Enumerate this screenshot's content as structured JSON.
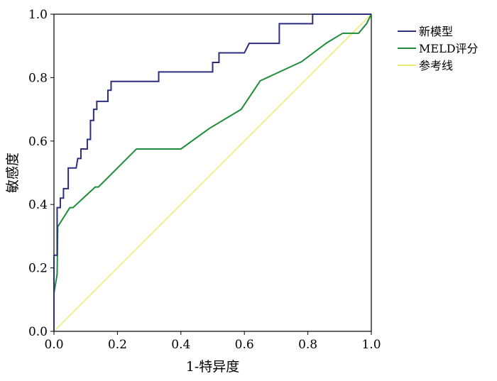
{
  "chart_data": {
    "type": "line",
    "xlabel": "1-特异度",
    "ylabel": "敏感度",
    "xlim": [
      0.0,
      1.0
    ],
    "ylim": [
      0.0,
      1.0
    ],
    "xticks": [
      "0.0",
      "0.2",
      "0.4",
      "0.6",
      "0.8",
      "1.0"
    ],
    "yticks": [
      "0.0",
      "0.2",
      "0.4",
      "0.6",
      "0.8",
      "1.0"
    ],
    "grid": false,
    "legend_position": "right",
    "series": [
      {
        "name": "新模型",
        "color": "#2b2f7e",
        "step": true,
        "points": [
          [
            0.0,
            0.0
          ],
          [
            0.0,
            0.24
          ],
          [
            0.01,
            0.24
          ],
          [
            0.01,
            0.39
          ],
          [
            0.02,
            0.39
          ],
          [
            0.02,
            0.42
          ],
          [
            0.03,
            0.42
          ],
          [
            0.03,
            0.45
          ],
          [
            0.045,
            0.45
          ],
          [
            0.045,
            0.515
          ],
          [
            0.07,
            0.515
          ],
          [
            0.075,
            0.545
          ],
          [
            0.085,
            0.545
          ],
          [
            0.085,
            0.575
          ],
          [
            0.105,
            0.575
          ],
          [
            0.105,
            0.605
          ],
          [
            0.115,
            0.605
          ],
          [
            0.115,
            0.665
          ],
          [
            0.125,
            0.665
          ],
          [
            0.125,
            0.7
          ],
          [
            0.135,
            0.7
          ],
          [
            0.135,
            0.725
          ],
          [
            0.17,
            0.725
          ],
          [
            0.17,
            0.76
          ],
          [
            0.18,
            0.76
          ],
          [
            0.18,
            0.788
          ],
          [
            0.33,
            0.788
          ],
          [
            0.33,
            0.818
          ],
          [
            0.5,
            0.818
          ],
          [
            0.5,
            0.848
          ],
          [
            0.52,
            0.848
          ],
          [
            0.52,
            0.878
          ],
          [
            0.6,
            0.878
          ],
          [
            0.615,
            0.908
          ],
          [
            0.71,
            0.908
          ],
          [
            0.71,
            0.97
          ],
          [
            0.815,
            0.97
          ],
          [
            0.815,
            1.0
          ],
          [
            1.0,
            1.0
          ]
        ]
      },
      {
        "name": "MELD评分",
        "color": "#1e8c3a",
        "step": false,
        "points": [
          [
            0.0,
            0.0
          ],
          [
            0.0,
            0.12
          ],
          [
            0.01,
            0.18
          ],
          [
            0.012,
            0.33
          ],
          [
            0.05,
            0.39
          ],
          [
            0.06,
            0.39
          ],
          [
            0.13,
            0.455
          ],
          [
            0.14,
            0.455
          ],
          [
            0.26,
            0.575
          ],
          [
            0.4,
            0.575
          ],
          [
            0.49,
            0.64
          ],
          [
            0.59,
            0.7
          ],
          [
            0.65,
            0.79
          ],
          [
            0.78,
            0.85
          ],
          [
            0.86,
            0.91
          ],
          [
            0.91,
            0.94
          ],
          [
            0.96,
            0.94
          ],
          [
            0.985,
            0.97
          ],
          [
            1.0,
            1.0
          ]
        ]
      },
      {
        "name": "参考线",
        "color": "#e8e84a",
        "step": false,
        "points": [
          [
            0.0,
            0.0
          ],
          [
            1.0,
            1.0
          ]
        ]
      }
    ]
  }
}
